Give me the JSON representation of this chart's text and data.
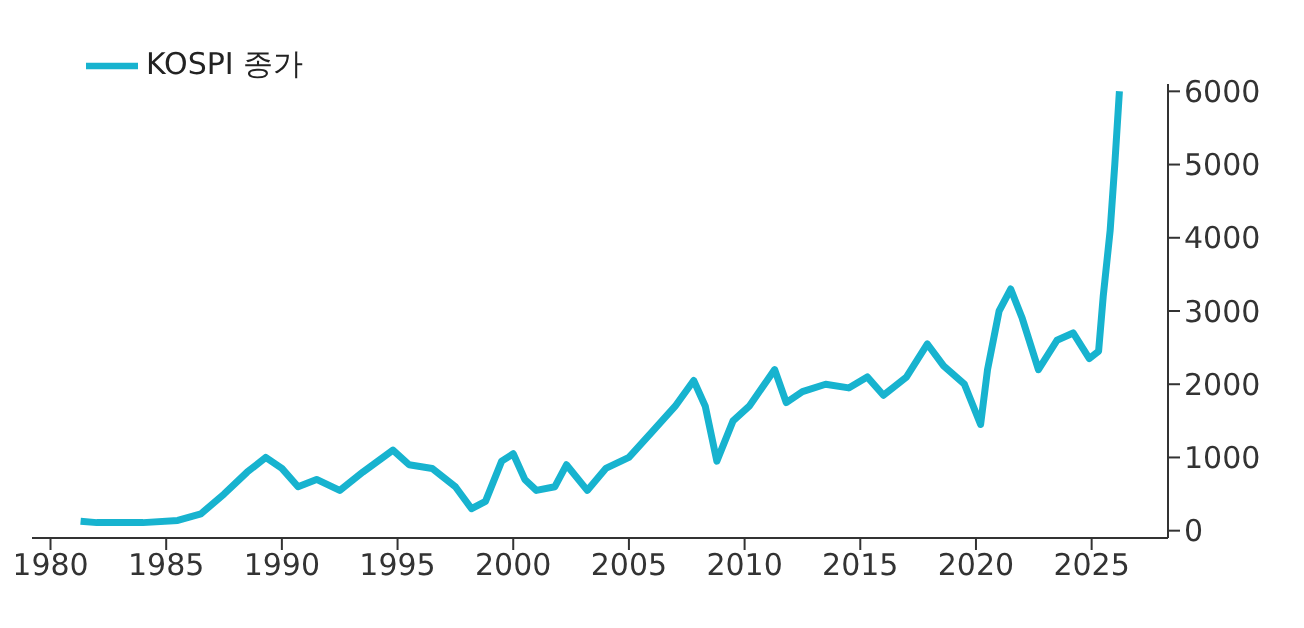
{
  "chart_data": {
    "type": "line",
    "legend": "top left",
    "grid": false,
    "marker": "none",
    "line_style": "solid",
    "x": [
      1981.3,
      1982,
      1984,
      1985.5,
      1986.5,
      1987.5,
      1988.5,
      1989.3,
      1990,
      1990.7,
      1991.5,
      1992.5,
      1993.5,
      1994.8,
      1995.5,
      1996.5,
      1997.5,
      1998.2,
      1998.8,
      1999.5,
      2000,
      2000.5,
      2001,
      2001.8,
      2002.3,
      2003.2,
      2004,
      2005,
      2006,
      2007,
      2007.8,
      2008.3,
      2008.8,
      2009.5,
      2010.2,
      2011.3,
      2011.8,
      2012.5,
      2013.5,
      2014.5,
      2015.3,
      2016,
      2017,
      2017.9,
      2018.6,
      2019.5,
      2020.2,
      2020.5,
      2021,
      2021.5,
      2022,
      2022.7,
      2023.5,
      2024.2,
      2024.9,
      2025.3,
      2025.5,
      2025.8,
      2026,
      2026.2
    ],
    "series": [
      {
        "name": "KOSPI 종가",
        "color": "#17b3cf",
        "values": [
          130,
          110,
          110,
          140,
          230,
          500,
          800,
          1000,
          850,
          600,
          700,
          550,
          800,
          1100,
          900,
          850,
          600,
          300,
          400,
          950,
          1050,
          700,
          550,
          600,
          900,
          550,
          850,
          1000,
          1350,
          1700,
          2050,
          1700,
          950,
          1500,
          1700,
          2200,
          1750,
          1900,
          2000,
          1950,
          2100,
          1850,
          2100,
          2550,
          2250,
          2000,
          1450,
          2200,
          3000,
          3300,
          2900,
          2200,
          2600,
          2700,
          2350,
          2450,
          3200,
          4100,
          5000,
          6000
        ]
      }
    ],
    "xlim": [
      1979.2,
      2028.3
    ],
    "xticks": [
      1980,
      1985,
      1990,
      1995,
      2000,
      2005,
      2010,
      2015,
      2020,
      2025
    ],
    "ylim": [
      -100,
      6100
    ],
    "yticks": [
      0,
      1000,
      2000,
      3000,
      4000,
      5000,
      6000
    ]
  }
}
